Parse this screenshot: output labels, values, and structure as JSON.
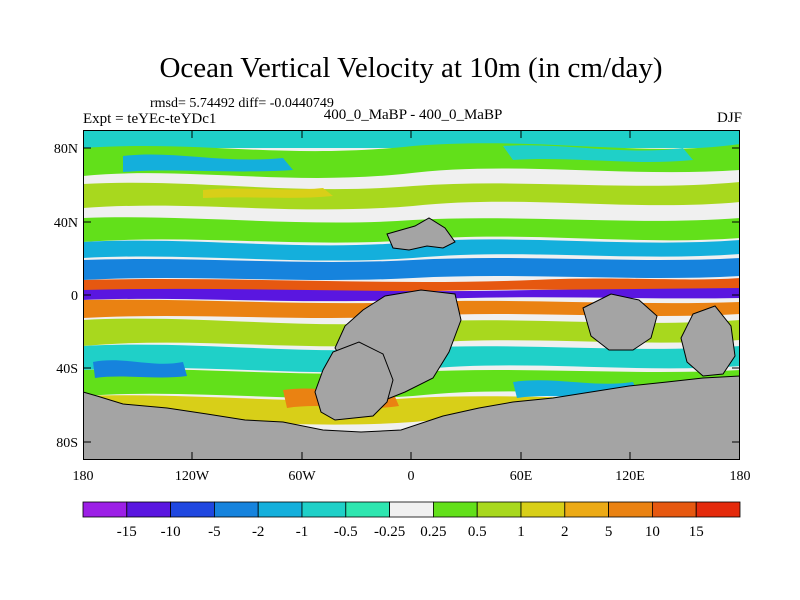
{
  "title": "Ocean Vertical Velocity at 10m (in cm/day)",
  "stats_line": "rmsd= 5.74492 diff= -0.0440749",
  "experiment": "Expt = teYEc-teYDc1",
  "comparison": "400_0_MaBP - 400_0_MaBP",
  "season": "DJF",
  "axes": {
    "lat_labels": [
      "80N",
      "40N",
      "0",
      "40S",
      "80S"
    ],
    "lon_labels": [
      "180",
      "120W",
      "60W",
      "0",
      "60E",
      "120E",
      "180"
    ]
  },
  "colorbar": {
    "labels": [
      "-15",
      "-10",
      "-5",
      "-2",
      "-1",
      "-0.5",
      "-0.25",
      "0.25",
      "0.5",
      "1",
      "2",
      "5",
      "10",
      "15"
    ],
    "colors": [
      "#9c1fe6",
      "#5a16e0",
      "#1f47e0",
      "#1683dd",
      "#14afdc",
      "#1fd0c8",
      "#2ee6b0",
      "#f0f0f0",
      "#62e01a",
      "#a8d81e",
      "#d8cf18",
      "#ecaa16",
      "#ea8212",
      "#e65810",
      "#e42a0c"
    ]
  },
  "land_color": "#a4a4a4"
}
